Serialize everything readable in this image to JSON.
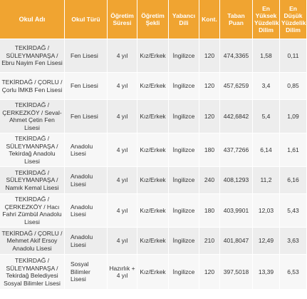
{
  "headers": [
    "Okul Adı",
    "Okul Türü",
    "Öğretim Süresi",
    "Öğretim Şekli",
    "Yabancı Dili",
    "Kont.",
    "Taban Puan",
    "En Yüksek Yüzdelik Dilim",
    "En Düşük Yüzdelik Dilim"
  ],
  "rows": [
    [
      "TEKİRDAĞ / SÜLEYMANPAŞA / Ebru Nayim Fen Lisesi",
      "Fen Lisesi",
      "4 yıl",
      "Kız/Erkek",
      "İngilizce",
      "120",
      "474,3365",
      "1,58",
      "0,11"
    ],
    [
      "TEKİRDAĞ / ÇORLU / Çorlu İMKB Fen Lisesi",
      "Fen Lisesi",
      "4 yıl",
      "Kız/Erkek",
      "İngilizce",
      "120",
      "457,6259",
      "3,4",
      "0,85"
    ],
    [
      "TEKİRDAĞ / ÇERKEZKÖY / Seval-Ahmet Çetin Fen Lisesi",
      "Fen Lisesi",
      "4 yıl",
      "Kız/Erkek",
      "İngilizce",
      "120",
      "442,6842",
      "5,4",
      "1,09"
    ],
    [
      "TEKİRDAĞ / SÜLEYMANPAŞA / Tekirdağ Anadolu Lisesi",
      "Anadolu Lisesi",
      "4 yıl",
      "Kız/Erkek",
      "İngilizce",
      "180",
      "437,7266",
      "6,14",
      "1,61"
    ],
    [
      "TEKİRDAĞ / SÜLEYMANPAŞA / Namık Kemal Lisesi",
      "Anadolu Lisesi",
      "4 yıl",
      "Kız/Erkek",
      "İngilizce",
      "240",
      "408,1293",
      "11,2",
      "6,16"
    ],
    [
      "TEKİRDAĞ / ÇERKEZKÖY / Hacı Fahri Zümbül Anadolu Lisesi",
      "Anadolu Lisesi",
      "4 yıl",
      "Kız/Erkek",
      "İngilizce",
      "180",
      "403,9901",
      "12,03",
      "5,43"
    ],
    [
      "TEKİRDAĞ / ÇORLU / Mehmet Akif Ersoy Anadolu Lisesi",
      "Anadolu Lisesi",
      "4 yıl",
      "Kız/Erkek",
      "İngilizce",
      "210",
      "401,8047",
      "12,49",
      "3,63"
    ],
    [
      "TEKİRDAĞ / SÜLEYMANPAŞA / Tekirdağ Belediyesi Sosyal Bilimler Lisesi",
      "Sosyal Bilimler Lisesi",
      "Hazırlık + 4 yıl",
      "Kız/Erkek",
      "İngilizce",
      "120",
      "397,5018",
      "13,39",
      "6,53"
    ]
  ]
}
